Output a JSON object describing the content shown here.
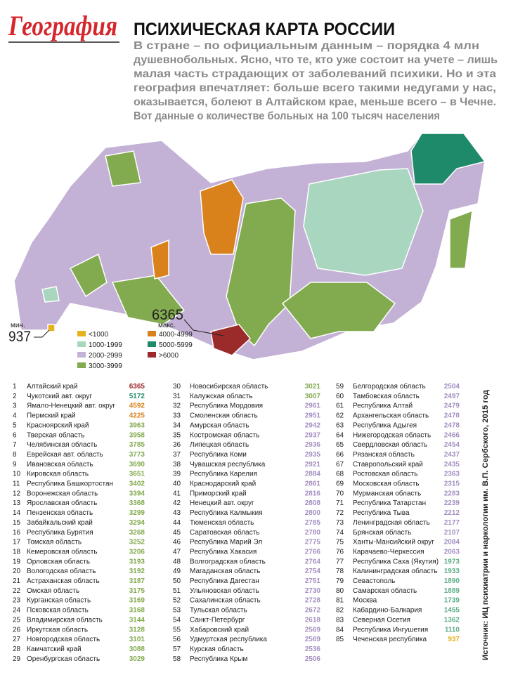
{
  "header": {
    "brand": "География",
    "title": "ПСИХИЧЕСКАЯ КАРТА РОССИИ",
    "lead_lines": [
      "В стране – по официальным данным – порядка 4 млн",
      "душевнобольных. Ясно, что те, кто уже состоит на учете – лишь",
      "малая часть страдающих от заболеваний психики. Но и эта",
      "география впечатляет: больше всего такими недугами у нас,",
      "оказывается, болеют в Алтайском крае, меньше всего – в Чечне.",
      "Вот данные о количестве больных на 100 тысяч населения"
    ]
  },
  "map": {
    "min_label": "мин.",
    "min_value": 937,
    "max_value": 6365,
    "max_label": "макс.",
    "legend": [
      {
        "label": "<1000",
        "color": "#e3b21c"
      },
      {
        "label": "1000-1999",
        "color": "#a9d6bf"
      },
      {
        "label": "2000-2999",
        "color": "#c3b2d6"
      },
      {
        "label": "3000-3999",
        "color": "#82ab4f"
      },
      {
        "label": "4000-4999",
        "color": "#d9821c"
      },
      {
        "label": "5000-5999",
        "color": "#1f8a6a"
      },
      {
        "label": ">6000",
        "color": "#9b2a2a"
      }
    ]
  },
  "table": {
    "rows": [
      {
        "rank": 1,
        "name": "Алтайский край",
        "value": 6365,
        "color": "#9b2a2a"
      },
      {
        "rank": 2,
        "name": "Чукотский авт. округ",
        "value": 5172,
        "color": "#1f8a6a"
      },
      {
        "rank": 3,
        "name": "Ямало-Ненецкий авт. округ",
        "value": 4592,
        "color": "#d9821c"
      },
      {
        "rank": 4,
        "name": "Пермский край",
        "value": 4225,
        "color": "#d9821c"
      },
      {
        "rank": 5,
        "name": "Красноярский край",
        "value": 3963,
        "color": "#82ab4f"
      },
      {
        "rank": 6,
        "name": "Тверская область",
        "value": 3958,
        "color": "#82ab4f"
      },
      {
        "rank": 7,
        "name": "Челябинская область",
        "value": 3785,
        "color": "#82ab4f"
      },
      {
        "rank": 8,
        "name": "Еврейская авт. область",
        "value": 3773,
        "color": "#82ab4f"
      },
      {
        "rank": 9,
        "name": "Ивановская область",
        "value": 3690,
        "color": "#82ab4f"
      },
      {
        "rank": 10,
        "name": "Кировская область",
        "value": 3651,
        "color": "#82ab4f"
      },
      {
        "rank": 11,
        "name": "Республика Башкортостан",
        "value": 3402,
        "color": "#82ab4f"
      },
      {
        "rank": 12,
        "name": "Воронежская область",
        "value": 3394,
        "color": "#82ab4f"
      },
      {
        "rank": 13,
        "name": "Ярославская область",
        "value": 3368,
        "color": "#82ab4f"
      },
      {
        "rank": 14,
        "name": "Пензенская область",
        "value": 3299,
        "color": "#82ab4f"
      },
      {
        "rank": 15,
        "name": "Забайкальский край",
        "value": 3294,
        "color": "#82ab4f"
      },
      {
        "rank": 16,
        "name": "Республика Бурятия",
        "value": 3268,
        "color": "#82ab4f"
      },
      {
        "rank": 17,
        "name": "Томская область",
        "value": 3252,
        "color": "#82ab4f"
      },
      {
        "rank": 18,
        "name": "Кемеровская область",
        "value": 3206,
        "color": "#82ab4f"
      },
      {
        "rank": 19,
        "name": "Орловская область",
        "value": 3193,
        "color": "#82ab4f"
      },
      {
        "rank": 20,
        "name": "Вологодская область",
        "value": 3192,
        "color": "#82ab4f"
      },
      {
        "rank": 21,
        "name": "Астраханская область",
        "value": 3187,
        "color": "#82ab4f"
      },
      {
        "rank": 22,
        "name": "Омская область",
        "value": 3175,
        "color": "#82ab4f"
      },
      {
        "rank": 23,
        "name": "Курганская область",
        "value": 3169,
        "color": "#82ab4f"
      },
      {
        "rank": 24,
        "name": "Псковская область",
        "value": 3168,
        "color": "#82ab4f"
      },
      {
        "rank": 25,
        "name": "Владимирская область",
        "value": 3144,
        "color": "#82ab4f"
      },
      {
        "rank": 26,
        "name": "Иркутская область",
        "value": 3128,
        "color": "#82ab4f"
      },
      {
        "rank": 27,
        "name": "Новгородская область",
        "value": 3101,
        "color": "#82ab4f"
      },
      {
        "rank": 28,
        "name": "Камчатский край",
        "value": 3088,
        "color": "#82ab4f"
      },
      {
        "rank": 29,
        "name": "Оренбургская область",
        "value": 3029,
        "color": "#82ab4f"
      },
      {
        "rank": 30,
        "name": "Новосибирская область",
        "value": 3021,
        "color": "#82ab4f"
      },
      {
        "rank": 31,
        "name": "Калужская область",
        "value": 3007,
        "color": "#82ab4f"
      },
      {
        "rank": 32,
        "name": "Республика Мордовия",
        "value": 2961,
        "color": "#a48fc0"
      },
      {
        "rank": 33,
        "name": "Смоленская область",
        "value": 2951,
        "color": "#a48fc0"
      },
      {
        "rank": 34,
        "name": "Амурская область",
        "value": 2942,
        "color": "#a48fc0"
      },
      {
        "rank": 35,
        "name": "Костромская область",
        "value": 2937,
        "color": "#a48fc0"
      },
      {
        "rank": 36,
        "name": "Липецкая область",
        "value": 2936,
        "color": "#a48fc0"
      },
      {
        "rank": 37,
        "name": "Республика Коми",
        "value": 2935,
        "color": "#a48fc0"
      },
      {
        "rank": 38,
        "name": "Чувашская республика",
        "value": 2921,
        "color": "#a48fc0"
      },
      {
        "rank": 39,
        "name": "Республика Карелия",
        "value": 2884,
        "color": "#a48fc0"
      },
      {
        "rank": 40,
        "name": "Краснодарский край",
        "value": 2861,
        "color": "#a48fc0"
      },
      {
        "rank": 41,
        "name": "Приморский край",
        "value": 2816,
        "color": "#a48fc0"
      },
      {
        "rank": 42,
        "name": "Ненецкий авт. округ",
        "value": 2808,
        "color": "#a48fc0"
      },
      {
        "rank": 43,
        "name": "Республика Калмыкия",
        "value": 2800,
        "color": "#a48fc0"
      },
      {
        "rank": 44,
        "name": "Тюменская область",
        "value": 2785,
        "color": "#a48fc0"
      },
      {
        "rank": 45,
        "name": "Саратовская область",
        "value": 2780,
        "color": "#a48fc0"
      },
      {
        "rank": 46,
        "name": "Республика Марий Эл",
        "value": 2775,
        "color": "#a48fc0"
      },
      {
        "rank": 47,
        "name": "Республика Хакасия",
        "value": 2766,
        "color": "#a48fc0"
      },
      {
        "rank": 48,
        "name": "Волгоградская область",
        "value": 2764,
        "color": "#a48fc0"
      },
      {
        "rank": 49,
        "name": "Магаданская область",
        "value": 2754,
        "color": "#a48fc0"
      },
      {
        "rank": 50,
        "name": "Республика Дагестан",
        "value": 2751,
        "color": "#a48fc0"
      },
      {
        "rank": 51,
        "name": "Ульяновская область",
        "value": 2730,
        "color": "#a48fc0"
      },
      {
        "rank": 52,
        "name": "Сахалинская область",
        "value": 2728,
        "color": "#a48fc0"
      },
      {
        "rank": 53,
        "name": "Тульская область",
        "value": 2672,
        "color": "#a48fc0"
      },
      {
        "rank": 54,
        "name": "Санкт-Петербург",
        "value": 2618,
        "color": "#a48fc0"
      },
      {
        "rank": 55,
        "name": "Хабаровский край",
        "value": 2569,
        "color": "#a48fc0"
      },
      {
        "rank": 56,
        "name": "Удмуртская республика",
        "value": 2569,
        "color": "#a48fc0"
      },
      {
        "rank": 57,
        "name": "Курская область",
        "value": 2536,
        "color": "#a48fc0"
      },
      {
        "rank": 58,
        "name": "Республика Крым",
        "value": 2506,
        "color": "#a48fc0"
      },
      {
        "rank": 59,
        "name": "Белгородская область",
        "value": 2504,
        "color": "#a48fc0"
      },
      {
        "rank": 60,
        "name": "Тамбовская область",
        "value": 2497,
        "color": "#a48fc0"
      },
      {
        "rank": 61,
        "name": "Республика Алтай",
        "value": 2479,
        "color": "#a48fc0"
      },
      {
        "rank": 62,
        "name": "Архангельская область",
        "value": 2478,
        "color": "#a48fc0"
      },
      {
        "rank": 63,
        "name": "Республика Адыгея",
        "value": 2478,
        "color": "#a48fc0"
      },
      {
        "rank": 64,
        "name": "Нижегородская область",
        "value": 2466,
        "color": "#a48fc0"
      },
      {
        "rank": 65,
        "name": "Свердловская область",
        "value": 2454,
        "color": "#a48fc0"
      },
      {
        "rank": 66,
        "name": "Рязанская область",
        "value": 2437,
        "color": "#a48fc0"
      },
      {
        "rank": 67,
        "name": "Ставропольский край",
        "value": 2435,
        "color": "#a48fc0"
      },
      {
        "rank": 68,
        "name": "Ростовская область",
        "value": 2363,
        "color": "#a48fc0"
      },
      {
        "rank": 69,
        "name": "Московская область",
        "value": 2315,
        "color": "#a48fc0"
      },
      {
        "rank": 70,
        "name": "Мурманская область",
        "value": 2283,
        "color": "#a48fc0"
      },
      {
        "rank": 71,
        "name": "Республика Татарстан",
        "value": 2239,
        "color": "#a48fc0"
      },
      {
        "rank": 72,
        "name": "Республика Тыва",
        "value": 2212,
        "color": "#a48fc0"
      },
      {
        "rank": 73,
        "name": "Ленинградская область",
        "value": 2177,
        "color": "#a48fc0"
      },
      {
        "rank": 74,
        "name": "Брянская область",
        "value": 2107,
        "color": "#a48fc0"
      },
      {
        "rank": 75,
        "name": "Ханты-Мансийский округ",
        "value": 2084,
        "color": "#a48fc0"
      },
      {
        "rank": 76,
        "name": "Карачаево-Черкессия",
        "value": 2063,
        "color": "#a48fc0"
      },
      {
        "rank": 77,
        "name": "Республика Саха (Якутия)",
        "value": 1973,
        "color": "#5fae86"
      },
      {
        "rank": 78,
        "name": "Калининградская область",
        "value": 1933,
        "color": "#5fae86"
      },
      {
        "rank": 79,
        "name": "Севастополь",
        "value": 1890,
        "color": "#5fae86"
      },
      {
        "rank": 80,
        "name": "Самарская область",
        "value": 1889,
        "color": "#5fae86"
      },
      {
        "rank": 81,
        "name": "Москва",
        "value": 1739,
        "color": "#5fae86"
      },
      {
        "rank": 82,
        "name": "Кабардино-Балкария",
        "value": 1455,
        "color": "#5fae86"
      },
      {
        "rank": 83,
        "name": "Северная Осетия",
        "value": 1362,
        "color": "#5fae86"
      },
      {
        "rank": 84,
        "name": "Республика Ингушетия",
        "value": 1110,
        "color": "#5fae86"
      },
      {
        "rank": 85,
        "name": "Чеченская республика",
        "value": 937,
        "color": "#e3b21c"
      }
    ]
  },
  "source": "Источник: ИЦ психиатрии и наркологии им. В.П. Сербского, 2015 год"
}
